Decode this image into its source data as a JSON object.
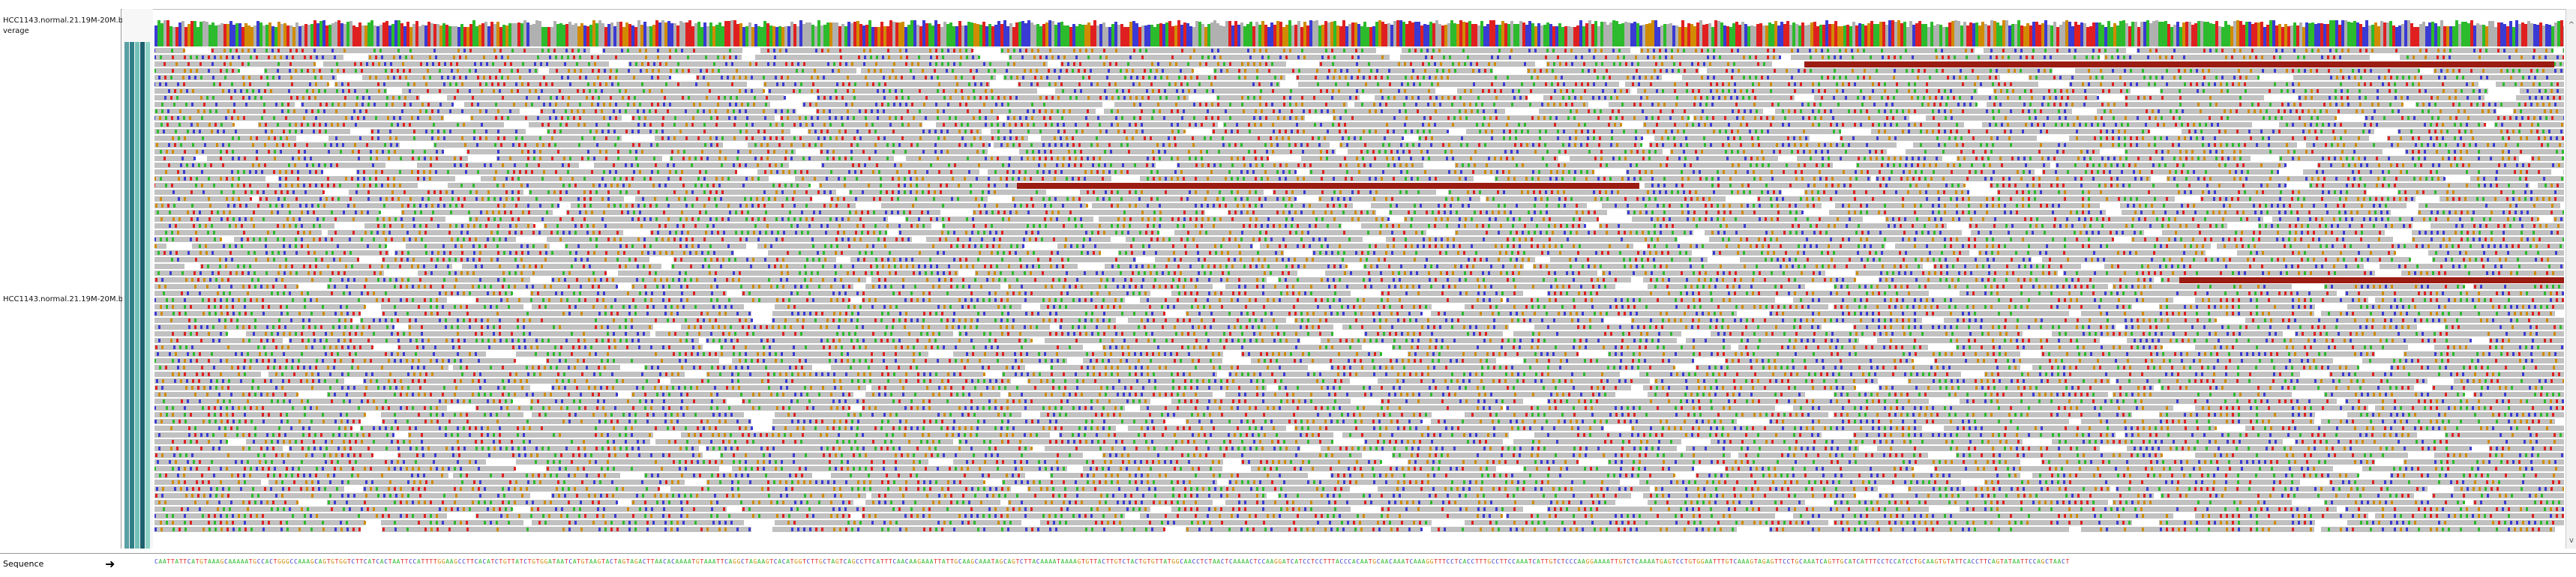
{
  "tracks": {
    "coverage_name": "HCC1143.normal.21.19M-20M.b",
    "coverage_label": "verage",
    "alignment_name": "HCC1143.normal.21.19M-20M.b"
  },
  "sequence": {
    "label": "Sequence",
    "bases": "CAATTATTCATGTAAAGCAAAAATGCCACTGGGCCAAAGCAGTGTGGTCTTCATCACTAATTCCATTTTGGAAGCCTTCACATCTGTTATCTGTGGATAATCATGTAAGTACTAGTAGACTTAACACAAAATGTAAATTCAGGCTAGAAGTCACATGGTCTTGCTAGTCAGCCTTCATTTCAACAAGAAATTATTGCAAGCAAATAGCAGTCTTACAAAATAAAAGTGTTACTTGTCTACTGTGTTATGGCAACCTCTAACTCAAAACTCCAAGGATCATCCTCCTTTACCCACAATGCAACAAATCAAAGGTTTCCTCACCTTTGCCTTCCAAATCATTGTCTCCCAAGGAAAATTGTCTCAAAATGAGTCCTGTGGAATTTGTCAAAGTAGAGTTCCTGCAAATCAGTTGCATCATTTCCTCCATCCTGCAAGTGTATTCACCTTCAGTATAATTCCAGCTAACT"
  },
  "colors": {
    "read_fill": "#c1c1c1",
    "gap_fill": "#f6f6f6",
    "base_A": "#2cbb2c",
    "base_C": "#3a3ad4",
    "base_G": "#d18b00",
    "base_T": "#e02020",
    "insertion": "#9b1c12",
    "scroll_up_icon": "^",
    "scroll_down_icon": "v",
    "strand_icon": "arrow-right"
  }
}
